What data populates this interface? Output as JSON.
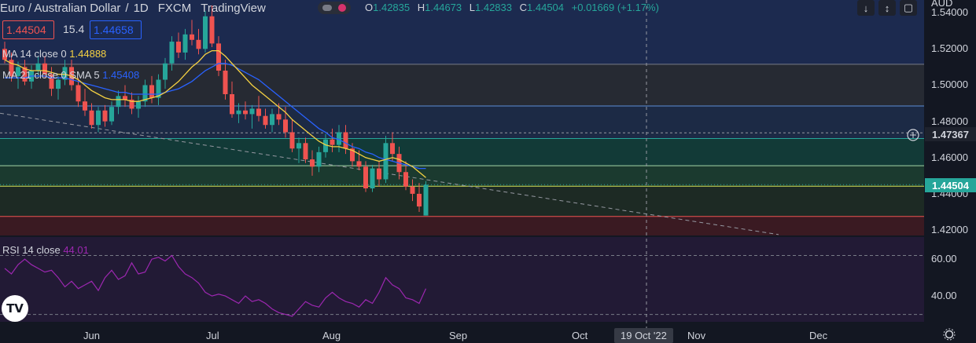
{
  "header": {
    "symbol": "Euro / Australian Dollar",
    "interval": "1D",
    "exchange": "FXCM",
    "platform": "TradingView"
  },
  "ohlc": {
    "o_label": "O",
    "o": "1.42835",
    "h_label": "H",
    "h": "1.44673",
    "l_label": "L",
    "l": "1.42833",
    "c_label": "C",
    "c": "1.44504",
    "change": "+0.01669 (+1.17%)"
  },
  "quote": {
    "bid": "1.44504",
    "spread": "15.4",
    "ask": "1.44658"
  },
  "indicators": {
    "ma14_label": "MA 14 close 0",
    "ma14_value": "1.44888",
    "ma21_label": "MA 21 close 0 SMA 5",
    "ma21_value": "1.45408",
    "rsi_label": "RSI 14 close",
    "rsi_value": "44.01"
  },
  "price_axis": {
    "currency": "AUD",
    "ticks": [
      "1.54000",
      "1.52000",
      "1.50000",
      "1.48000",
      "1.46000",
      "1.44000",
      "1.42000"
    ],
    "marker_label": "1.47367",
    "last_price_label": "1.44504"
  },
  "rsi_axis": {
    "ticks": [
      "60.00",
      "40.00"
    ]
  },
  "time_axis": {
    "labels": [
      "Jun",
      "Jul",
      "Aug",
      "Sep",
      "Oct",
      "Nov",
      "Dec"
    ],
    "crosshair_label": "19 Oct '22"
  },
  "logo": "TV",
  "colors": {
    "up": "#26a69a",
    "down": "#ef5350",
    "ma14": "#f5d142",
    "ma21": "#2962ff",
    "rsi": "#9c27b0"
  },
  "chart_data": {
    "type": "candlestick",
    "ylim": [
      1.417,
      1.547
    ],
    "candles": [
      [
        1.52,
        1.524,
        1.512,
        1.514
      ],
      [
        1.514,
        1.518,
        1.502,
        1.505
      ],
      [
        1.505,
        1.513,
        1.498,
        1.51
      ],
      [
        1.51,
        1.514,
        1.5,
        1.502
      ],
      [
        1.502,
        1.511,
        1.498,
        1.508
      ],
      [
        1.508,
        1.516,
        1.505,
        1.512
      ],
      [
        1.512,
        1.516,
        1.504,
        1.506
      ],
      [
        1.506,
        1.51,
        1.494,
        1.498
      ],
      [
        1.498,
        1.505,
        1.492,
        1.503
      ],
      [
        1.503,
        1.514,
        1.5,
        1.51
      ],
      [
        1.51,
        1.514,
        1.497,
        1.5
      ],
      [
        1.5,
        1.504,
        1.488,
        1.491
      ],
      [
        1.491,
        1.498,
        1.483,
        1.486
      ],
      [
        1.486,
        1.49,
        1.476,
        1.478
      ],
      [
        1.478,
        1.488,
        1.474,
        1.486
      ],
      [
        1.486,
        1.489,
        1.477,
        1.48
      ],
      [
        1.48,
        1.491,
        1.478,
        1.488
      ],
      [
        1.488,
        1.497,
        1.484,
        1.494
      ],
      [
        1.494,
        1.5,
        1.488,
        1.492
      ],
      [
        1.492,
        1.496,
        1.484,
        1.487
      ],
      [
        1.487,
        1.494,
        1.482,
        1.491
      ],
      [
        1.491,
        1.503,
        1.488,
        1.5
      ],
      [
        1.5,
        1.505,
        1.49,
        1.493
      ],
      [
        1.493,
        1.506,
        1.489,
        1.503
      ],
      [
        1.503,
        1.515,
        1.498,
        1.512
      ],
      [
        1.512,
        1.527,
        1.508,
        1.524
      ],
      [
        1.524,
        1.529,
        1.515,
        1.518
      ],
      [
        1.518,
        1.531,
        1.514,
        1.528
      ],
      [
        1.528,
        1.536,
        1.522,
        1.525
      ],
      [
        1.525,
        1.531,
        1.517,
        1.52
      ],
      [
        1.52,
        1.541,
        1.518,
        1.538
      ],
      [
        1.538,
        1.544,
        1.521,
        1.523
      ],
      [
        1.523,
        1.527,
        1.505,
        1.508
      ],
      [
        1.508,
        1.514,
        1.492,
        1.495
      ],
      [
        1.495,
        1.502,
        1.482,
        1.484
      ],
      [
        1.484,
        1.49,
        1.479,
        1.486
      ],
      [
        1.486,
        1.491,
        1.481,
        1.484
      ],
      [
        1.484,
        1.489,
        1.476,
        1.487
      ],
      [
        1.487,
        1.494,
        1.48,
        1.483
      ],
      [
        1.483,
        1.487,
        1.476,
        1.478
      ],
      [
        1.478,
        1.487,
        1.474,
        1.484
      ],
      [
        1.484,
        1.49,
        1.478,
        1.481
      ],
      [
        1.481,
        1.488,
        1.471,
        1.474
      ],
      [
        1.474,
        1.481,
        1.463,
        1.465
      ],
      [
        1.465,
        1.471,
        1.457,
        1.468
      ],
      [
        1.468,
        1.471,
        1.457,
        1.459
      ],
      [
        1.459,
        1.464,
        1.45,
        1.455
      ],
      [
        1.455,
        1.466,
        1.452,
        1.463
      ],
      [
        1.463,
        1.473,
        1.46,
        1.47
      ],
      [
        1.47,
        1.476,
        1.463,
        1.467
      ],
      [
        1.467,
        1.478,
        1.463,
        1.474
      ],
      [
        1.474,
        1.478,
        1.462,
        1.465
      ],
      [
        1.465,
        1.468,
        1.455,
        1.458
      ],
      [
        1.458,
        1.464,
        1.453,
        1.455
      ],
      [
        1.455,
        1.458,
        1.441,
        1.443
      ],
      [
        1.443,
        1.456,
        1.441,
        1.454
      ],
      [
        1.454,
        1.458,
        1.444,
        1.448
      ],
      [
        1.448,
        1.472,
        1.446,
        1.468
      ],
      [
        1.468,
        1.474,
        1.458,
        1.462
      ],
      [
        1.462,
        1.466,
        1.448,
        1.452
      ],
      [
        1.452,
        1.458,
        1.442,
        1.444
      ],
      [
        1.444,
        1.448,
        1.436,
        1.44
      ],
      [
        1.44,
        1.446,
        1.43,
        1.433
      ],
      [
        1.428,
        1.447,
        1.428,
        1.445
      ]
    ],
    "ma14": [
      1.514,
      1.512,
      1.511,
      1.509,
      1.508,
      1.508,
      1.508,
      1.507,
      1.506,
      1.506,
      1.505,
      1.503,
      1.5,
      1.497,
      1.495,
      1.493,
      1.492,
      1.492,
      1.492,
      1.491,
      1.491,
      1.492,
      1.493,
      1.494,
      1.496,
      1.499,
      1.502,
      1.506,
      1.51,
      1.513,
      1.517,
      1.519,
      1.519,
      1.516,
      1.512,
      1.508,
      1.504,
      1.5,
      1.497,
      1.494,
      1.491,
      1.488,
      1.485,
      1.481,
      1.478,
      1.475,
      1.472,
      1.469,
      1.467,
      1.466,
      1.466,
      1.465,
      1.464,
      1.462,
      1.46,
      1.459,
      1.458,
      1.459,
      1.46,
      1.459,
      1.457,
      1.455,
      1.452,
      1.449
    ],
    "ma21": [
      1.504,
      1.504,
      1.504,
      1.504,
      1.505,
      1.505,
      1.505,
      1.504,
      1.504,
      1.504,
      1.503,
      1.502,
      1.501,
      1.5,
      1.499,
      1.498,
      1.497,
      1.496,
      1.496,
      1.495,
      1.495,
      1.495,
      1.495,
      1.495,
      1.496,
      1.497,
      1.498,
      1.5,
      1.502,
      1.505,
      1.508,
      1.51,
      1.512,
      1.512,
      1.511,
      1.509,
      1.507,
      1.505,
      1.503,
      1.5,
      1.497,
      1.494,
      1.491,
      1.488,
      1.485,
      1.482,
      1.479,
      1.476,
      1.474,
      1.471,
      1.47,
      1.468,
      1.466,
      1.465,
      1.463,
      1.462,
      1.46,
      1.459,
      1.458,
      1.457,
      1.456,
      1.455,
      1.454,
      1.454
    ],
    "rsi": [
      55,
      52,
      57,
      60,
      57,
      55,
      53,
      54,
      50,
      45,
      48,
      44,
      46,
      48,
      43,
      50,
      54,
      49,
      51,
      58,
      52,
      53,
      60,
      61,
      59,
      62,
      56,
      52,
      50,
      47,
      42,
      40,
      41,
      40,
      38,
      36,
      40,
      37,
      38,
      36,
      33,
      31,
      30,
      29,
      33,
      37,
      35,
      34,
      39,
      42,
      39,
      37,
      36,
      34,
      38,
      36,
      42,
      50,
      46,
      44,
      39,
      38,
      36,
      44
    ],
    "rsi_ylim": [
      26,
      72
    ],
    "levels": [
      1.5115,
      1.4885,
      1.4705,
      1.4555,
      1.4442,
      1.4275
    ],
    "marker_price": 1.47367,
    "last_price": 1.44504
  }
}
